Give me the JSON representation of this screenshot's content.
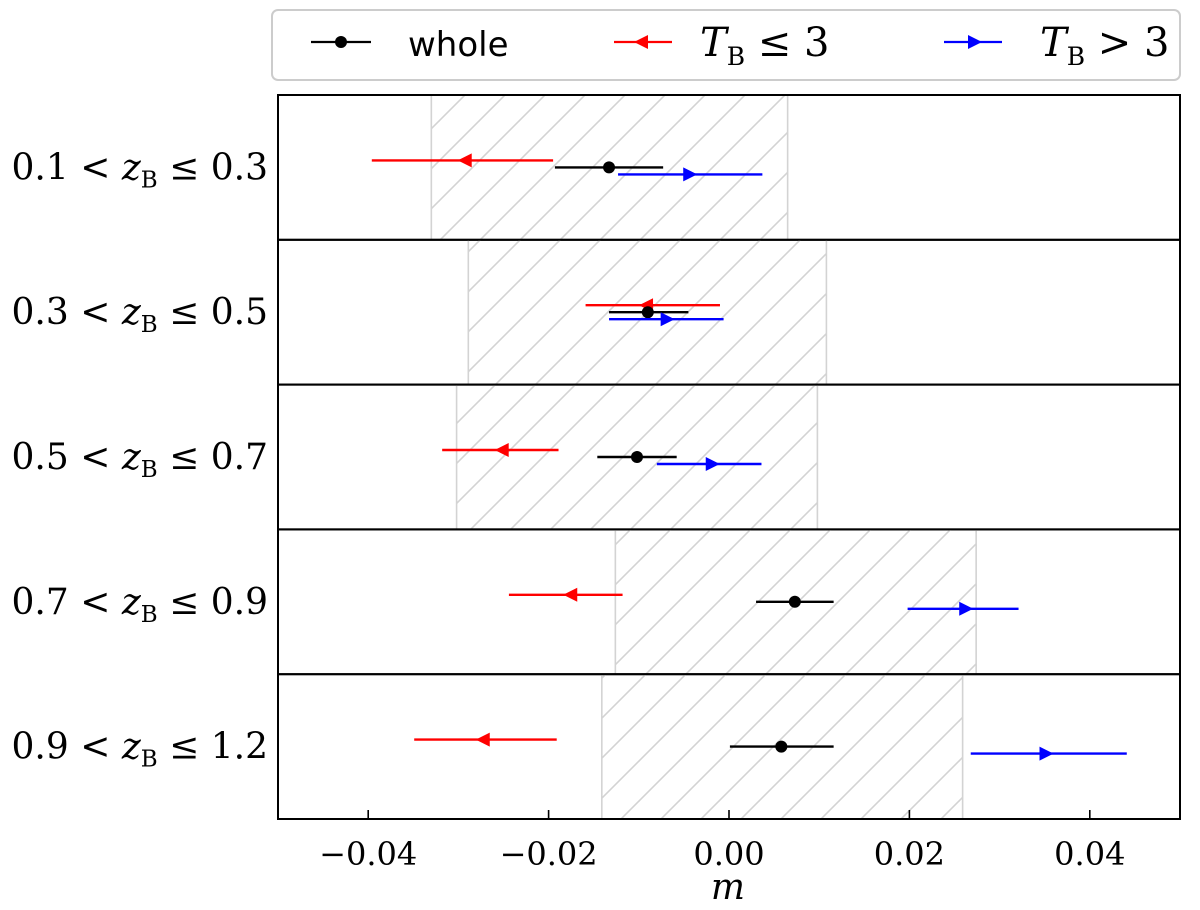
{
  "chart_data": {
    "type": "errorbar",
    "xlabel": "m",
    "xlim": [
      -0.05,
      0.05
    ],
    "xticks": [
      -0.04,
      -0.02,
      0.0,
      0.02,
      0.04
    ],
    "xtick_labels": [
      "−0.04",
      "−0.02",
      "0.00",
      "0.02",
      "0.04"
    ],
    "legend": {
      "position": "top-center",
      "entries": [
        {
          "key": "whole",
          "label": "whole",
          "color": "#000000",
          "marker": "circle"
        },
        {
          "key": "low",
          "label_prefix": "T",
          "label_sub": "B",
          "label_suffix": " ≤ 3",
          "color": "#ff0000",
          "marker": "triangle-left"
        },
        {
          "key": "high",
          "label_prefix": "T",
          "label_sub": "B",
          "label_suffix": " > 3",
          "color": "#0000ff",
          "marker": "triangle-right"
        }
      ]
    },
    "bins": [
      {
        "label_pre": "0.1 < z",
        "label_sub": "B",
        "label_post": " ≤ 0.3",
        "band": [
          -0.033,
          0.0065
        ],
        "whole": {
          "value": -0.0133,
          "lo": -0.0193,
          "hi": -0.0073
        },
        "low": {
          "value": -0.0293,
          "lo": -0.0396,
          "hi": -0.0195
        },
        "high": {
          "value": -0.0043,
          "lo": -0.0123,
          "hi": 0.0037
        }
      },
      {
        "label_pre": "0.3 < z",
        "label_sub": "B",
        "label_post": " ≤ 0.5",
        "band": [
          -0.0289,
          0.0108
        ],
        "whole": {
          "value": -0.009,
          "lo": -0.0133,
          "hi": -0.0045
        },
        "low": {
          "value": -0.0092,
          "lo": -0.0159,
          "hi": -0.001
        },
        "high": {
          "value": -0.0068,
          "lo": -0.0133,
          "hi": -0.0006
        }
      },
      {
        "label_pre": "0.5 < z",
        "label_sub": "B",
        "label_post": " ≤ 0.7",
        "band": [
          -0.0302,
          0.0098
        ],
        "whole": {
          "value": -0.0102,
          "lo": -0.0146,
          "hi": -0.0058
        },
        "low": {
          "value": -0.0252,
          "lo": -0.0318,
          "hi": -0.0189
        },
        "high": {
          "value": -0.0018,
          "lo": -0.008,
          "hi": 0.0036
        }
      },
      {
        "label_pre": "0.7 < z",
        "label_sub": "B",
        "label_post": " ≤ 0.9",
        "band": [
          -0.0126,
          0.0274
        ],
        "whole": {
          "value": 0.0073,
          "lo": 0.003,
          "hi": 0.0116
        },
        "low": {
          "value": -0.0176,
          "lo": -0.0244,
          "hi": -0.0118
        },
        "high": {
          "value": 0.0263,
          "lo": 0.0198,
          "hi": 0.0321
        }
      },
      {
        "label_pre": "0.9 < z",
        "label_sub": "B",
        "label_post": " ≤ 1.2",
        "band": [
          -0.0141,
          0.0259
        ],
        "whole": {
          "value": 0.0058,
          "lo": 0.0001,
          "hi": 0.0116
        },
        "low": {
          "value": -0.0273,
          "lo": -0.0349,
          "hi": -0.0191
        },
        "high": {
          "value": 0.0352,
          "lo": 0.0268,
          "hi": 0.0441
        }
      }
    ]
  }
}
